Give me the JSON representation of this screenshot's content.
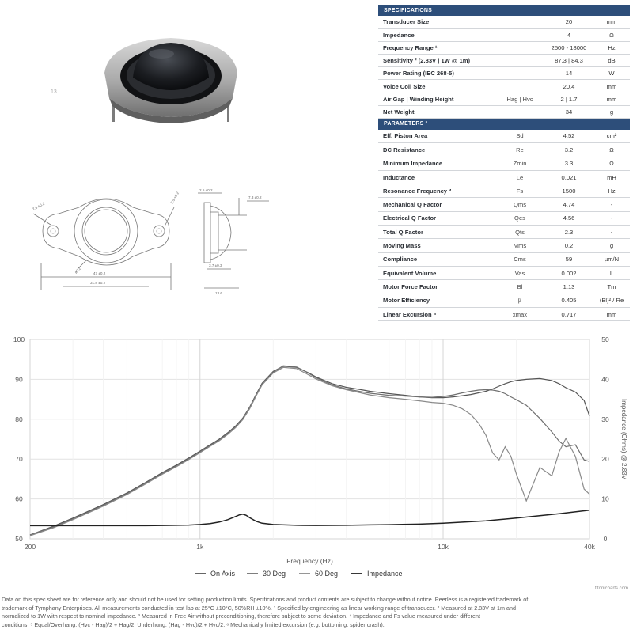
{
  "product": {
    "image_label": "13"
  },
  "drawings": {
    "dims": [
      "2.5 ±0.2",
      "2.5 ±0.2",
      "ø0.2",
      "47 ±0.2",
      "31.8 ±0.2",
      "2.5 ±0.2",
      "3.7 ±0.3",
      "13.6",
      "7.3 ±0.2"
    ]
  },
  "specifications": {
    "title": "SPECIFICATIONS",
    "rows": [
      {
        "label": "Transducer Size",
        "symbol": "",
        "value": "20",
        "unit": "mm"
      },
      {
        "label": "Impedance",
        "symbol": "",
        "value": "4",
        "unit": "Ω"
      },
      {
        "label": "Frequency Range ¹",
        "symbol": "",
        "value": "2500 - 18000",
        "unit": "Hz"
      },
      {
        "label": "Sensitivity ² (2.83V | 1W @ 1m)",
        "symbol": "",
        "value": "87.3 | 84.3",
        "unit": "dB"
      },
      {
        "label": "Power Rating (IEC 268-5)",
        "symbol": "",
        "value": "14",
        "unit": "W"
      },
      {
        "label": "Voice Coil Size",
        "symbol": "",
        "value": "20.4",
        "unit": "mm"
      },
      {
        "label": "Air Gap | Winding Height",
        "symbol": "Hag | Hvc",
        "value": "2 | 1.7",
        "unit": "mm"
      },
      {
        "label": "Net Weight",
        "symbol": "",
        "value": "34",
        "unit": "g"
      }
    ]
  },
  "parameters": {
    "title": "PARAMETERS ³",
    "rows": [
      {
        "label": "Eff. Piston Area",
        "symbol": "Sd",
        "value": "4.52",
        "unit": "cm²"
      },
      {
        "label": "DC Resistance",
        "symbol": "Re",
        "value": "3.2",
        "unit": "Ω"
      },
      {
        "label": "Minimum Impedance",
        "symbol": "Zmin",
        "value": "3.3",
        "unit": "Ω"
      },
      {
        "label": "Inductance",
        "symbol": "Le",
        "value": "0.021",
        "unit": "mH"
      },
      {
        "label": "Resonance Frequency ⁴",
        "symbol": "Fs",
        "value": "1500",
        "unit": "Hz"
      },
      {
        "label": "Mechanical Q Factor",
        "symbol": "Qms",
        "value": "4.74",
        "unit": "-"
      },
      {
        "label": "Electrical Q Factor",
        "symbol": "Qes",
        "value": "4.56",
        "unit": "-"
      },
      {
        "label": "Total Q Factor",
        "symbol": "Qts",
        "value": "2.3",
        "unit": "-"
      },
      {
        "label": "Moving Mass",
        "symbol": "Mms",
        "value": "0.2",
        "unit": "g"
      },
      {
        "label": "Compliance",
        "symbol": "Cms",
        "value": "59",
        "unit": "µm/N"
      },
      {
        "label": "Equivalent Volume",
        "symbol": "Vas",
        "value": "0.002",
        "unit": "L"
      },
      {
        "label": "Motor Force Factor",
        "symbol": "Bl",
        "value": "1.13",
        "unit": "Tm"
      },
      {
        "label": "Motor Efficiency",
        "symbol": "β",
        "value": "0.405",
        "unit": "(Bl)² / Re"
      },
      {
        "label": "Linear Excursion ⁵",
        "symbol": "xmax",
        "value": "0.717",
        "unit": "mm"
      }
    ]
  },
  "chart_data": {
    "type": "line",
    "title": "",
    "xlabel": "Frequency (Hz)",
    "ylabel": "",
    "y2label": "Impedance (Ohms) @ 2.83V",
    "x_scale": "log",
    "xlim": [
      200,
      40000
    ],
    "ylim": [
      50,
      100
    ],
    "y2lim": [
      0,
      50
    ],
    "x_ticks": [
      "200",
      "1k",
      "10k",
      "40k"
    ],
    "y_ticks": [
      "50",
      "60",
      "70",
      "80",
      "90",
      "100"
    ],
    "y2_ticks": [
      "0",
      "10",
      "20",
      "30",
      "40",
      "50"
    ],
    "grid": true,
    "legend_position": "bottom",
    "series": [
      {
        "name": "On Axis",
        "color": "#555555",
        "x": [
          200,
          250,
          300,
          400,
          500,
          600,
          700,
          800,
          900,
          1000,
          1100,
          1200,
          1300,
          1400,
          1500,
          1600,
          1700,
          1800,
          2000,
          2200,
          2500,
          2800,
          3000,
          3500,
          4000,
          4500,
          5000,
          6000,
          7000,
          8000,
          9000,
          10000,
          11000,
          12000,
          13000,
          14000,
          15000,
          16000,
          17000,
          18000,
          19000,
          20000,
          22000,
          25000,
          28000,
          30000,
          32000,
          35000,
          38000,
          40000
        ],
        "values": [
          51,
          53.2,
          55.2,
          58.6,
          61.5,
          64.2,
          66.6,
          68.5,
          70.3,
          72.0,
          73.6,
          75.0,
          76.6,
          78.3,
          80.3,
          83.0,
          86.2,
          89.0,
          92.0,
          93.3,
          93.0,
          91.6,
          90.6,
          88.9,
          88.0,
          87.5,
          87.0,
          86.4,
          86.0,
          85.6,
          85.4,
          85.4,
          85.6,
          85.9,
          86.2,
          86.6,
          87.0,
          87.6,
          88.3,
          88.9,
          89.4,
          89.7,
          90.0,
          90.2,
          89.7,
          88.9,
          87.9,
          86.8,
          84.7,
          80.8
        ]
      },
      {
        "name": "30 Deg",
        "color": "#707070",
        "x": [
          200,
          250,
          300,
          400,
          500,
          600,
          700,
          800,
          900,
          1000,
          1100,
          1200,
          1300,
          1400,
          1500,
          1600,
          1700,
          1800,
          2000,
          2200,
          2500,
          2800,
          3000,
          3500,
          4000,
          4500,
          5000,
          6000,
          7000,
          8000,
          9000,
          10000,
          11000,
          12000,
          13000,
          14000,
          15000,
          16000,
          17000,
          18000,
          19000,
          20000,
          22000,
          25000,
          28000,
          30000,
          32000,
          35000,
          38000,
          40000
        ],
        "values": [
          51,
          53.0,
          55.0,
          58.4,
          61.3,
          64.0,
          66.4,
          68.3,
          70.1,
          71.8,
          73.4,
          74.8,
          76.4,
          78.1,
          80.1,
          82.8,
          86.0,
          88.8,
          91.8,
          93.4,
          93.1,
          91.5,
          90.4,
          88.6,
          87.6,
          87.0,
          86.5,
          86.0,
          85.8,
          85.6,
          85.5,
          85.7,
          86.1,
          86.6,
          87.0,
          87.3,
          87.4,
          87.3,
          87.0,
          86.4,
          85.6,
          84.9,
          83.5,
          80.2,
          76.8,
          74.5,
          73.1,
          73.6,
          69.8,
          69.4
        ]
      },
      {
        "name": "60 Deg",
        "color": "#8a8a8a",
        "x": [
          200,
          250,
          300,
          400,
          500,
          600,
          700,
          800,
          900,
          1000,
          1100,
          1200,
          1300,
          1400,
          1500,
          1600,
          1700,
          1800,
          2000,
          2200,
          2500,
          2800,
          3000,
          3500,
          4000,
          4500,
          5000,
          6000,
          7000,
          8000,
          9000,
          10000,
          11000,
          12000,
          13000,
          14000,
          15000,
          16000,
          17000,
          18000,
          19000,
          20000,
          22000,
          25000,
          28000,
          30000,
          32000,
          35000,
          38000,
          40000
        ],
        "values": [
          50.8,
          52.8,
          54.8,
          58.2,
          61.1,
          63.8,
          66.2,
          68.1,
          69.9,
          71.6,
          73.2,
          74.6,
          76.2,
          77.9,
          79.9,
          82.6,
          85.8,
          88.6,
          91.6,
          93.0,
          92.7,
          91.1,
          90.1,
          88.4,
          87.4,
          86.7,
          86.1,
          85.4,
          85.0,
          84.6,
          84.2,
          84.0,
          83.5,
          82.6,
          81.2,
          79.0,
          76.0,
          71.5,
          69.8,
          73.1,
          70.7,
          66.3,
          59.5,
          67.9,
          65.8,
          71.8,
          75.2,
          70.7,
          62.5,
          61.2
        ]
      },
      {
        "name": "Impedance",
        "color": "#222222",
        "axis": "right",
        "x": [
          200,
          300,
          400,
          500,
          600,
          700,
          800,
          900,
          1000,
          1100,
          1200,
          1300,
          1400,
          1450,
          1500,
          1550,
          1600,
          1700,
          1800,
          2000,
          2500,
          3000,
          4000,
          5000,
          6000,
          8000,
          10000,
          15000,
          20000,
          30000,
          40000
        ],
        "values": [
          3.3,
          3.3,
          3.3,
          3.3,
          3.3,
          3.35,
          3.4,
          3.45,
          3.6,
          3.8,
          4.2,
          4.8,
          5.6,
          6.0,
          6.2,
          5.9,
          5.3,
          4.4,
          3.9,
          3.6,
          3.4,
          3.35,
          3.4,
          3.5,
          3.55,
          3.7,
          3.9,
          4.5,
          5.2,
          6.3,
          7.2
        ]
      }
    ]
  },
  "credit": "fitonicharts.com",
  "footnote": [
    "Data on this spec sheet are for reference only and should not be used for setting production limits. Specifications and product contents are subject to change without notice. Peerless is a registered trademark of",
    "trademark of Tymphany Enterprises. All measurements conducted in test lab at 25°C ±10°C, 50%RH ±10%. ¹ Specified by engineering as linear working range of transducer. ² Measured at 2.83V at 1m and",
    "normalized to 1W with respect to nominal impedance. ³ Measured in Free Air without preconditioning, therefore subject to some deviation. ⁴ Impedance and Fs value measured under different",
    "conditions. ⁵ Equal/Overhang: (Hvc - Hag)/2 + Hag/2. Underhung: (Hag - Hvc)/2 + Hvc/2. ⁶ Mechanically limited excursion (e.g. bottoming, spider crash)."
  ]
}
